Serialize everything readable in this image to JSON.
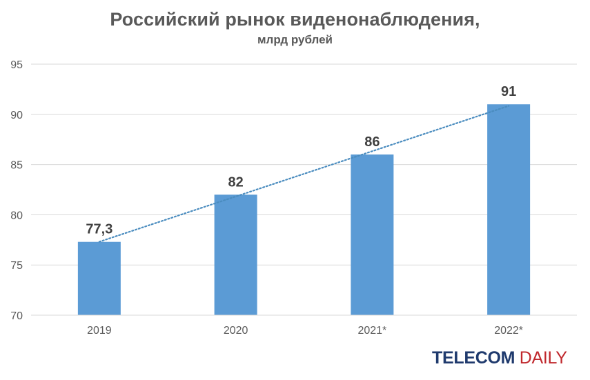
{
  "header": {
    "title": "Российский рынок виденонаблюдения,",
    "subtitle": "млрд рублей"
  },
  "logo": {
    "part1": "TELECOM",
    "part2": "DAILY"
  },
  "chart_data": {
    "type": "bar",
    "categories": [
      "2019",
      "2020",
      "2021*",
      "2022*"
    ],
    "values": [
      77.3,
      82,
      86,
      91
    ],
    "data_labels": [
      "77,3",
      "82",
      "86",
      "91"
    ],
    "title": "Российский рынок виденонаблюдения,",
    "subtitle": "млрд рублей",
    "xlabel": "",
    "ylabel": "",
    "ylim": [
      70,
      95
    ],
    "yticks": [
      70,
      75,
      80,
      85,
      90,
      95
    ],
    "grid": true,
    "trendline": "linear-dotted",
    "colors": {
      "bar": "#5b9bd5",
      "trendline": "#4a8cbf",
      "grid": "#d9d9d9",
      "text": "#595959"
    }
  }
}
